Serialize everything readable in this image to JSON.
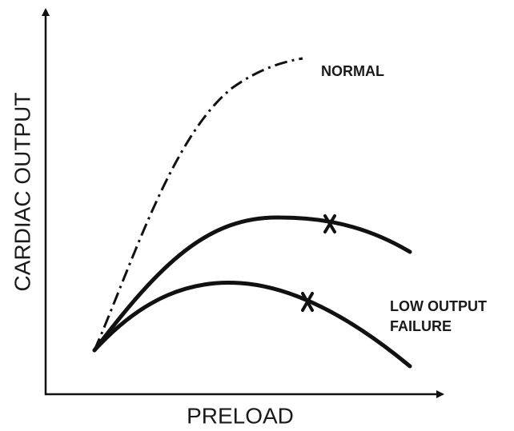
{
  "axes": {
    "y_label": "CARDIAC OUTPUT",
    "x_label": "PRELOAD"
  },
  "curves": [
    {
      "label": [
        "NORMAL"
      ]
    },
    {
      "label": [
        "LOW OUTPUT",
        "FAILURE"
      ]
    }
  ]
}
